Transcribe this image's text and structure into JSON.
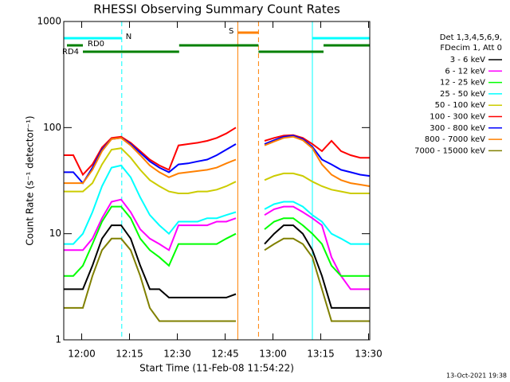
{
  "chart_data": {
    "type": "line",
    "title": "RHESSI Observing Summary Count Rates",
    "xlabel": "Start Time (11-Feb-08 11:54:22)",
    "ylabel": "Count Rate (s⁻¹ detector⁻¹)",
    "info": [
      "Det 1,3,4,5,6,9,",
      "FDecim 1, Att 0"
    ],
    "footer": "13-Oct-2021 19:38",
    "log_y": true,
    "xlim": [
      0,
      96
    ],
    "ylim": [
      1,
      1000
    ],
    "yticks": [
      1,
      10,
      100,
      1000
    ],
    "xticks": [
      {
        "value": 5.63,
        "label": "12:00"
      },
      {
        "value": 20.63,
        "label": "12:15"
      },
      {
        "value": 35.63,
        "label": "12:30"
      },
      {
        "value": 50.63,
        "label": "12:45"
      },
      {
        "value": 65.63,
        "label": "13:00"
      },
      {
        "value": 80.63,
        "label": "13:15"
      },
      {
        "value": 95.63,
        "label": "13:30"
      }
    ],
    "x": [
      0,
      3,
      6,
      9,
      12,
      15,
      18,
      21,
      24,
      27,
      30,
      33,
      36,
      39,
      42,
      45,
      48,
      51,
      54,
      57,
      60,
      63,
      66,
      69,
      72,
      75,
      78,
      81,
      84,
      87,
      90,
      93,
      96
    ],
    "series": [
      {
        "name": "3 - 6 keV",
        "color": "#000000",
        "values": [
          3,
          3,
          3,
          5,
          9,
          12,
          12,
          9,
          5,
          3,
          3,
          2.5,
          2.5,
          2.5,
          2.5,
          2.5,
          2.5,
          2.5,
          2.7,
          null,
          null,
          8,
          10,
          12,
          12,
          10,
          7,
          4,
          2,
          2,
          2,
          2,
          2
        ]
      },
      {
        "name": "6 - 12 keV",
        "color": "#ff00ff",
        "values": [
          7,
          7,
          7,
          9,
          14,
          20,
          21,
          16,
          11,
          9,
          8,
          7,
          12,
          12,
          12,
          12,
          13,
          13,
          14,
          null,
          null,
          15,
          17,
          18,
          18,
          16,
          14,
          12,
          6,
          4,
          3,
          3,
          3
        ]
      },
      {
        "name": "12 - 25 keV",
        "color": "#00ff00",
        "values": [
          4,
          4,
          5,
          8,
          13,
          18,
          18,
          14,
          9,
          7,
          6,
          5,
          8,
          8,
          8,
          8,
          8,
          9,
          10,
          null,
          null,
          11,
          13,
          14,
          14,
          12,
          10,
          8,
          5,
          4,
          4,
          4,
          4
        ]
      },
      {
        "name": "25 - 50 keV",
        "color": "#00ffff",
        "values": [
          8,
          8,
          10,
          16,
          28,
          42,
          44,
          34,
          22,
          15,
          12,
          10,
          13,
          13,
          13,
          14,
          14,
          15,
          16,
          null,
          null,
          17,
          19,
          20,
          20,
          18,
          15,
          13,
          10,
          9,
          8,
          8,
          8
        ]
      },
      {
        "name": "50 - 100 keV",
        "color": "#cccc00",
        "values": [
          25,
          25,
          25,
          30,
          45,
          62,
          64,
          52,
          40,
          32,
          28,
          25,
          24,
          24,
          25,
          25,
          26,
          28,
          31,
          null,
          null,
          32,
          35,
          37,
          37,
          35,
          31,
          28,
          26,
          25,
          24,
          24,
          24
        ]
      },
      {
        "name": "100 - 300 keV",
        "color": "#ff0000",
        "values": [
          55,
          55,
          36,
          45,
          65,
          80,
          82,
          72,
          60,
          50,
          44,
          40,
          68,
          70,
          72,
          75,
          80,
          88,
          100,
          null,
          null,
          75,
          80,
          84,
          85,
          80,
          70,
          60,
          75,
          60,
          55,
          52,
          52
        ]
      },
      {
        "name": "300 - 800 keV",
        "color": "#0000ff",
        "values": [
          38,
          38,
          30,
          42,
          62,
          78,
          80,
          70,
          58,
          48,
          42,
          38,
          45,
          46,
          48,
          50,
          55,
          62,
          70,
          null,
          null,
          70,
          76,
          82,
          84,
          78,
          66,
          50,
          45,
          40,
          38,
          36,
          35
        ]
      },
      {
        "name": "800 - 7000 keV",
        "color": "#ff8000",
        "values": [
          30,
          30,
          30,
          40,
          60,
          78,
          80,
          68,
          55,
          44,
          38,
          34,
          37,
          38,
          39,
          40,
          42,
          46,
          50,
          null,
          null,
          68,
          74,
          80,
          82,
          76,
          64,
          45,
          36,
          32,
          30,
          29,
          28
        ]
      },
      {
        "name": "7000 - 15000 keV",
        "color": "#808000",
        "values": [
          2,
          2,
          2,
          4,
          7,
          9,
          9,
          7,
          4,
          2,
          1.5,
          1.5,
          1.5,
          1.5,
          1.5,
          1.5,
          1.5,
          1.5,
          1.5,
          null,
          null,
          7,
          8,
          9,
          9,
          8,
          6,
          3,
          1.5,
          1.5,
          1.5,
          1.5,
          1.5
        ]
      }
    ],
    "flags": [
      {
        "name": "N",
        "color": "#00ffff",
        "intervals": [
          [
            0,
            18.2
          ],
          [
            78,
            96
          ]
        ]
      },
      {
        "name": "S",
        "color": "#ff8000",
        "intervals": [
          [
            54.6,
            61.1
          ]
        ]
      },
      {
        "name": "RD0",
        "color": "#008000",
        "intervals": [
          [
            1,
            6
          ],
          [
            36.2,
            61.1
          ],
          [
            81.5,
            96
          ]
        ]
      },
      {
        "name": "RD4",
        "color": "#008000",
        "intervals": [
          [
            6,
            36.2
          ],
          [
            61.1,
            81.5
          ]
        ]
      }
    ],
    "vlines": [
      {
        "x": 0,
        "color": "#00ffff",
        "style": "solid"
      },
      {
        "x": 18.2,
        "color": "#00ffff",
        "style": "dashed"
      },
      {
        "x": 78,
        "color": "#00ffff",
        "style": "solid"
      },
      {
        "x": 96,
        "color": "#00ffff",
        "style": "dashed"
      },
      {
        "x": 54.6,
        "color": "#ff8000",
        "style": "solid"
      },
      {
        "x": 61.1,
        "color": "#ff8000",
        "style": "dashed"
      }
    ]
  }
}
